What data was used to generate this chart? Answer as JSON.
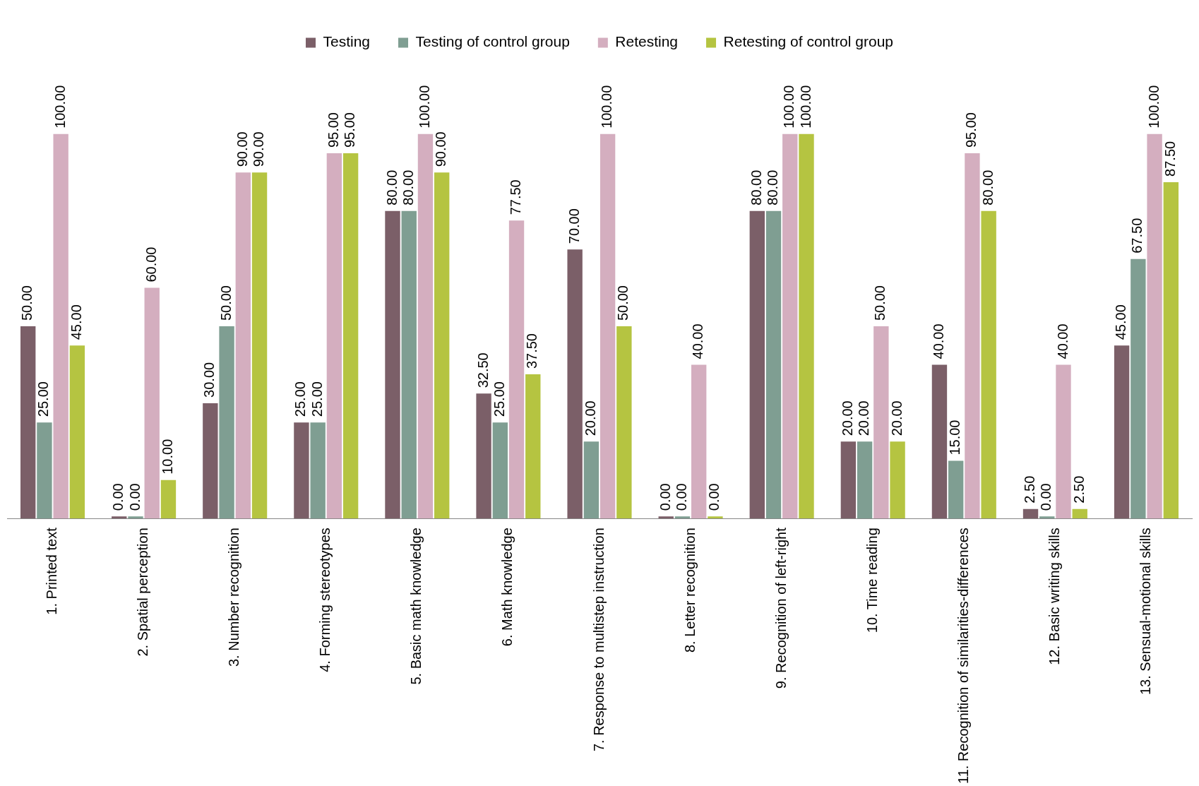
{
  "chart_data": {
    "type": "bar",
    "categories": [
      "1. Printed text",
      "2. Spatial perception",
      "3. Number recognition",
      "4. Forming stereotypes",
      "5. Basic math knowledge",
      "6. Math knowledge",
      "7. Response to multistep instruction",
      "8. Letter recognition",
      "9. Recognition of left-right",
      "10. Time reading",
      "11. Recognition of similarities-differences",
      "12. Basic writing skills",
      "13. Sensual-motional skills"
    ],
    "series": [
      {
        "name": "Testing",
        "color": "#7b5f68",
        "values": [
          50,
          0,
          30,
          25,
          80,
          32.5,
          70,
          0,
          80,
          20,
          40,
          2.5,
          45
        ],
        "value_labels": [
          "50.00",
          "0.00",
          "30.00",
          "25.00",
          "80.00",
          "32.50",
          "70.00",
          "0.00",
          "80.00",
          "20.00",
          "40.00",
          "2.50",
          "45.00"
        ]
      },
      {
        "name": "Testing of control group",
        "color": "#7f9e92",
        "values": [
          25,
          0,
          50,
          25,
          80,
          25,
          20,
          0,
          80,
          20,
          15,
          0,
          67.5
        ],
        "value_labels": [
          "25.00",
          "0.00",
          "50.00",
          "25.00",
          "80.00",
          "25.00",
          "20.00",
          "0.00",
          "80.00",
          "20.00",
          "15.00",
          "0.00",
          "67.50"
        ]
      },
      {
        "name": "Retesting",
        "color": "#d4aebf",
        "values": [
          100,
          60,
          90,
          95,
          100,
          77.5,
          100,
          40,
          100,
          50,
          95,
          40,
          100
        ],
        "value_labels": [
          "100.00",
          "60.00",
          "90.00",
          "95.00",
          "100.00",
          "77.50",
          "100.00",
          "40.00",
          "100.00",
          "50.00",
          "95.00",
          "40.00",
          "100.00"
        ]
      },
      {
        "name": "Retesting of control group",
        "color": "#b5c441",
        "values": [
          45,
          10,
          90,
          95,
          90,
          37.5,
          50,
          0,
          100,
          20,
          80,
          2.5,
          87.5
        ],
        "value_labels": [
          "45.00",
          "10.00",
          "90.00",
          "95.00",
          "90.00",
          "37.50",
          "50.00",
          "0.00",
          "100.00",
          "20.00",
          "80.00",
          "2.50",
          "87.50"
        ]
      }
    ],
    "grid": false,
    "legend": "top"
  }
}
